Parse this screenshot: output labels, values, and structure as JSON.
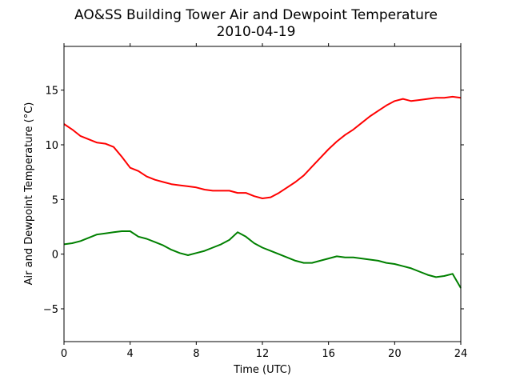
{
  "chart_data": {
    "type": "line",
    "title": "AO&SS Building Tower Air and Dewpoint Temperature",
    "subtitle": "2010-04-19",
    "xlabel": "Time (UTC)",
    "ylabel": "Air and Dewpoint Temperature (°C)",
    "xlim": [
      0,
      24
    ],
    "ylim": [
      -8,
      19
    ],
    "xticks": [
      0,
      4,
      8,
      12,
      16,
      20,
      24
    ],
    "yticks": [
      -5,
      0,
      5,
      10,
      15
    ],
    "grid": false,
    "series": [
      {
        "color": "#ff0000",
        "x": [
          0,
          0.5,
          1,
          1.5,
          2,
          2.5,
          3,
          3.5,
          4,
          4.5,
          5,
          5.5,
          6,
          6.5,
          7,
          7.5,
          8,
          8.5,
          9,
          9.5,
          10,
          10.5,
          11,
          11.5,
          12,
          12.5,
          13,
          13.5,
          14,
          14.5,
          15,
          15.5,
          16,
          16.5,
          17,
          17.5,
          18,
          18.5,
          19,
          19.5,
          20,
          20.5,
          21,
          21.5,
          22,
          22.5,
          23,
          23.5,
          24
        ],
        "y": [
          11.9,
          11.4,
          10.8,
          10.5,
          10.2,
          10.1,
          9.8,
          8.9,
          7.9,
          7.6,
          7.1,
          6.8,
          6.6,
          6.4,
          6.3,
          6.2,
          6.1,
          5.9,
          5.8,
          5.8,
          5.8,
          5.6,
          5.6,
          5.3,
          5.1,
          5.2,
          5.6,
          6.1,
          6.6,
          7.2,
          8.0,
          8.8,
          9.6,
          10.3,
          10.9,
          11.4,
          12.0,
          12.6,
          13.1,
          13.6,
          14.0,
          14.2,
          14.0,
          14.1,
          14.2,
          14.3,
          14.3,
          14.4,
          14.3
        ]
      },
      {
        "color": "#008000",
        "x": [
          0,
          0.5,
          1,
          1.5,
          2,
          2.5,
          3,
          3.5,
          4,
          4.5,
          5,
          5.5,
          6,
          6.5,
          7,
          7.5,
          8,
          8.5,
          9,
          9.5,
          10,
          10.5,
          11,
          11.5,
          12,
          12.5,
          13,
          13.5,
          14,
          14.5,
          15,
          15.5,
          16,
          16.5,
          17,
          17.5,
          18,
          18.5,
          19,
          19.5,
          20,
          20.5,
          21,
          21.5,
          22,
          22.5,
          23,
          23.5,
          24
        ],
        "y": [
          0.9,
          1.0,
          1.2,
          1.5,
          1.8,
          1.9,
          2.0,
          2.1,
          2.1,
          1.6,
          1.4,
          1.1,
          0.8,
          0.4,
          0.1,
          -0.1,
          0.1,
          0.3,
          0.6,
          0.9,
          1.3,
          2.0,
          1.6,
          1.0,
          0.6,
          0.3,
          0.0,
          -0.3,
          -0.6,
          -0.8,
          -0.8,
          -0.6,
          -0.4,
          -0.2,
          -0.3,
          -0.3,
          -0.4,
          -0.5,
          -0.6,
          -0.8,
          -0.9,
          -1.1,
          -1.3,
          -1.6,
          -1.9,
          -2.1,
          -2.0,
          -1.8,
          -3.1
        ]
      }
    ]
  }
}
